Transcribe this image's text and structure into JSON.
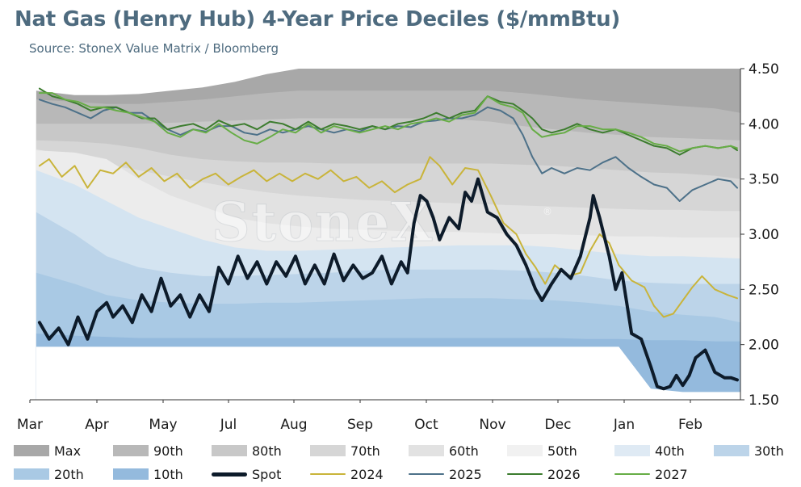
{
  "title": "Nat Gas (Henry Hub) 4-Year Price Deciles ($/mmBtu)",
  "subtitle": "Source: StoneX Value Matrix / Bloomberg",
  "watermark": "StoneX",
  "watermark_mark": "®",
  "chart_data": {
    "type": "area",
    "ylim": [
      1.5,
      4.5
    ],
    "yticks": [
      "4.50",
      "4.00",
      "3.50",
      "3.00",
      "2.50",
      "2.00",
      "1.50"
    ],
    "ytick_values": [
      4.5,
      4.0,
      3.5,
      3.0,
      2.5,
      2.0,
      1.5
    ],
    "x_label": "",
    "x_months": [
      "Mar",
      "Apr",
      "May",
      "Jul",
      "Aug",
      "Sep",
      "Oct",
      "Nov",
      "Dec",
      "Jan",
      "Feb"
    ],
    "x_month_pos": [
      0.0,
      1.0,
      2.0,
      3.0,
      4.0,
      5.0,
      6.0,
      7.0,
      8.0,
      9.0,
      10.0
    ],
    "x_range": [
      -0.2,
      10.9
    ],
    "deciles": {
      "x": [
        -0.1,
        0.5,
        1.0,
        1.5,
        2.0,
        2.5,
        3.0,
        3.5,
        4.0,
        4.5,
        5.0,
        5.5,
        6.0,
        6.5,
        7.0,
        7.5,
        8.0,
        8.5,
        9.0,
        9.5,
        10.0,
        10.5,
        10.9
      ],
      "bands": [
        {
          "name": "Max",
          "color": "#a8a8a8",
          "values": [
            4.3,
            4.26,
            4.26,
            4.27,
            4.3,
            4.33,
            4.38,
            4.45,
            4.5,
            4.5,
            4.5,
            4.5,
            4.5,
            4.5,
            4.5,
            4.5,
            4.5,
            4.5,
            4.5,
            4.5,
            4.5,
            4.5,
            4.5
          ]
        },
        {
          "name": "90th",
          "color": "#b8b8b8",
          "values": [
            4.22,
            4.2,
            4.18,
            4.18,
            4.2,
            4.22,
            4.25,
            4.28,
            4.3,
            4.3,
            4.3,
            4.3,
            4.3,
            4.3,
            4.3,
            4.28,
            4.25,
            4.22,
            4.2,
            4.18,
            4.16,
            4.14,
            4.1
          ]
        },
        {
          "name": "80th",
          "color": "#c8c8c8",
          "values": [
            4.0,
            4.0,
            4.0,
            4.0,
            4.01,
            4.02,
            4.03,
            4.04,
            4.05,
            4.05,
            4.05,
            4.05,
            4.05,
            4.04,
            4.02,
            3.98,
            3.95,
            3.92,
            3.9,
            3.88,
            3.87,
            3.86,
            3.85
          ]
        },
        {
          "name": "70th",
          "color": "#d6d6d6",
          "values": [
            3.85,
            3.84,
            3.82,
            3.78,
            3.72,
            3.68,
            3.66,
            3.65,
            3.65,
            3.64,
            3.64,
            3.64,
            3.64,
            3.64,
            3.64,
            3.63,
            3.62,
            3.6,
            3.58,
            3.56,
            3.55,
            3.53,
            3.5
          ]
        },
        {
          "name": "60th",
          "color": "#e2e2e2",
          "values": [
            3.77,
            3.7,
            3.63,
            3.58,
            3.52,
            3.47,
            3.42,
            3.38,
            3.35,
            3.33,
            3.31,
            3.3,
            3.29,
            3.28,
            3.27,
            3.26,
            3.25,
            3.24,
            3.23,
            3.22,
            3.22,
            3.21,
            3.21
          ]
        },
        {
          "name": "50th",
          "color": "#ececec",
          "values": [
            3.76,
            3.74,
            3.68,
            3.5,
            3.35,
            3.25,
            3.15,
            3.1,
            3.07,
            3.05,
            3.04,
            3.03,
            3.02,
            3.02,
            3.01,
            3.0,
            3.0,
            2.99,
            2.98,
            2.98,
            2.97,
            2.97,
            2.97
          ]
        },
        {
          "name": "40th",
          "color": "#d4e4f1",
          "values": [
            3.58,
            3.45,
            3.3,
            3.15,
            3.05,
            2.95,
            2.88,
            2.85,
            2.85,
            2.86,
            2.87,
            2.88,
            2.89,
            2.9,
            2.9,
            2.9,
            2.88,
            2.85,
            2.82,
            2.8,
            2.8,
            2.79,
            2.78
          ]
        },
        {
          "name": "30th",
          "color": "#bcd4e9",
          "values": [
            3.2,
            3.0,
            2.8,
            2.7,
            2.65,
            2.62,
            2.62,
            2.63,
            2.64,
            2.65,
            2.67,
            2.68,
            2.68,
            2.68,
            2.68,
            2.67,
            2.65,
            2.62,
            2.58,
            2.56,
            2.55,
            2.55,
            2.55
          ]
        },
        {
          "name": "20th",
          "color": "#a9c9e4",
          "values": [
            2.65,
            2.55,
            2.45,
            2.4,
            2.38,
            2.37,
            2.37,
            2.38,
            2.38,
            2.39,
            2.4,
            2.41,
            2.42,
            2.42,
            2.42,
            2.41,
            2.4,
            2.38,
            2.35,
            2.3,
            2.27,
            2.25,
            2.2
          ]
        },
        {
          "name": "10th",
          "color": "#94badd",
          "values": [
            2.1,
            2.08,
            2.07,
            2.06,
            2.06,
            2.06,
            2.06,
            2.06,
            2.06,
            2.06,
            2.06,
            2.06,
            2.06,
            2.06,
            2.06,
            2.06,
            2.06,
            2.05,
            2.05,
            2.04,
            2.04,
            2.03,
            2.03
          ]
        },
        {
          "name": "Min",
          "color": "#ffffff",
          "values": [
            1.98,
            1.98,
            1.98,
            1.98,
            1.98,
            1.98,
            1.98,
            1.98,
            1.98,
            1.98,
            1.98,
            1.98,
            1.98,
            1.98,
            1.98,
            1.98,
            1.98,
            1.98,
            1.98,
            1.6,
            1.57,
            1.57,
            1.57
          ]
        }
      ]
    },
    "series": [
      {
        "name": "Spot",
        "color": "#0d1b2a",
        "width": 4,
        "x": [
          -0.05,
          0.1,
          0.25,
          0.4,
          0.55,
          0.7,
          0.85,
          1.0,
          1.1,
          1.25,
          1.4,
          1.55,
          1.7,
          1.85,
          2.0,
          2.15,
          2.3,
          2.45,
          2.6,
          2.75,
          2.9,
          3.05,
          3.2,
          3.35,
          3.5,
          3.65,
          3.8,
          3.95,
          4.1,
          4.25,
          4.4,
          4.55,
          4.7,
          4.85,
          5.0,
          5.15,
          5.3,
          5.45,
          5.6,
          5.7,
          5.8,
          5.9,
          6.0,
          6.1,
          6.2,
          6.35,
          6.5,
          6.6,
          6.7,
          6.8,
          6.95,
          7.1,
          7.25,
          7.4,
          7.55,
          7.7,
          7.8,
          7.95,
          8.1,
          8.25,
          8.4,
          8.55,
          8.6,
          8.7,
          8.85,
          8.95,
          9.05,
          9.2,
          9.35,
          9.5,
          9.6,
          9.7,
          9.8,
          9.9,
          10.0,
          10.1,
          10.2,
          10.35,
          10.5,
          10.65,
          10.75,
          10.85
        ],
        "values": [
          2.2,
          2.05,
          2.15,
          2.0,
          2.25,
          2.05,
          2.3,
          2.38,
          2.25,
          2.35,
          2.2,
          2.45,
          2.3,
          2.6,
          2.35,
          2.45,
          2.25,
          2.45,
          2.3,
          2.7,
          2.55,
          2.8,
          2.6,
          2.75,
          2.55,
          2.75,
          2.62,
          2.8,
          2.55,
          2.72,
          2.55,
          2.82,
          2.58,
          2.72,
          2.6,
          2.65,
          2.8,
          2.55,
          2.75,
          2.65,
          3.1,
          3.35,
          3.3,
          3.15,
          2.95,
          3.15,
          3.05,
          3.38,
          3.3,
          3.5,
          3.2,
          3.15,
          3.0,
          2.9,
          2.72,
          2.5,
          2.4,
          2.55,
          2.68,
          2.6,
          2.8,
          3.15,
          3.35,
          3.15,
          2.8,
          2.5,
          2.65,
          2.1,
          2.05,
          1.8,
          1.62,
          1.6,
          1.62,
          1.72,
          1.63,
          1.72,
          1.88,
          1.95,
          1.75,
          1.7,
          1.7,
          1.68
        ]
      },
      {
        "name": "2024",
        "color": "#c9b43a",
        "width": 2,
        "x": [
          -0.05,
          0.1,
          0.3,
          0.5,
          0.7,
          0.9,
          1.1,
          1.3,
          1.5,
          1.7,
          1.9,
          2.1,
          2.3,
          2.5,
          2.7,
          2.9,
          3.1,
          3.3,
          3.5,
          3.7,
          3.9,
          4.1,
          4.3,
          4.5,
          4.7,
          4.9,
          5.1,
          5.3,
          5.5,
          5.7,
          5.9,
          6.05,
          6.2,
          6.4,
          6.6,
          6.8,
          7.0,
          7.2,
          7.4,
          7.55,
          7.7,
          7.85,
          8.0,
          8.2,
          8.4,
          8.55,
          8.7,
          8.85,
          9.0,
          9.2,
          9.4,
          9.55,
          9.7,
          9.85,
          10.0,
          10.15,
          10.3,
          10.5,
          10.7,
          10.85
        ],
        "values": [
          3.62,
          3.68,
          3.52,
          3.62,
          3.42,
          3.58,
          3.55,
          3.65,
          3.52,
          3.6,
          3.48,
          3.55,
          3.42,
          3.5,
          3.55,
          3.45,
          3.52,
          3.58,
          3.48,
          3.55,
          3.48,
          3.55,
          3.5,
          3.58,
          3.48,
          3.52,
          3.42,
          3.48,
          3.38,
          3.45,
          3.5,
          3.7,
          3.62,
          3.45,
          3.6,
          3.58,
          3.35,
          3.1,
          3.0,
          2.82,
          2.7,
          2.55,
          2.72,
          2.62,
          2.65,
          2.85,
          3.0,
          2.92,
          2.72,
          2.58,
          2.52,
          2.35,
          2.25,
          2.28,
          2.4,
          2.52,
          2.62,
          2.5,
          2.45,
          2.42
        ]
      },
      {
        "name": "2025",
        "color": "#4d7189",
        "width": 2,
        "x": [
          -0.05,
          0.15,
          0.35,
          0.55,
          0.75,
          0.95,
          1.15,
          1.35,
          1.55,
          1.75,
          1.95,
          2.15,
          2.35,
          2.55,
          2.75,
          2.95,
          3.15,
          3.35,
          3.55,
          3.75,
          3.95,
          4.15,
          4.35,
          4.55,
          4.75,
          4.95,
          5.15,
          5.35,
          5.55,
          5.75,
          5.95,
          6.15,
          6.35,
          6.55,
          6.75,
          6.95,
          7.15,
          7.35,
          7.5,
          7.65,
          7.8,
          7.95,
          8.15,
          8.35,
          8.55,
          8.75,
          8.95,
          9.15,
          9.35,
          9.55,
          9.75,
          9.95,
          10.15,
          10.35,
          10.55,
          10.75,
          10.85
        ],
        "values": [
          4.22,
          4.18,
          4.15,
          4.1,
          4.05,
          4.12,
          4.15,
          4.1,
          4.1,
          4.02,
          3.95,
          3.9,
          3.95,
          3.93,
          3.98,
          3.98,
          3.92,
          3.9,
          3.95,
          3.92,
          3.95,
          3.98,
          3.95,
          3.92,
          3.95,
          3.93,
          3.98,
          3.95,
          3.98,
          3.97,
          4.02,
          4.03,
          4.05,
          4.05,
          4.08,
          4.15,
          4.12,
          4.05,
          3.9,
          3.7,
          3.55,
          3.6,
          3.55,
          3.6,
          3.58,
          3.65,
          3.7,
          3.6,
          3.52,
          3.45,
          3.42,
          3.3,
          3.4,
          3.45,
          3.5,
          3.48,
          3.42
        ]
      },
      {
        "name": "2026",
        "color": "#3c7c2e",
        "width": 2,
        "x": [
          -0.05,
          0.15,
          0.35,
          0.55,
          0.75,
          0.95,
          1.15,
          1.35,
          1.55,
          1.75,
          1.95,
          2.15,
          2.35,
          2.55,
          2.75,
          2.95,
          3.15,
          3.35,
          3.55,
          3.75,
          3.95,
          4.15,
          4.35,
          4.55,
          4.75,
          4.95,
          5.15,
          5.35,
          5.55,
          5.75,
          5.95,
          6.15,
          6.35,
          6.55,
          6.75,
          6.95,
          7.15,
          7.35,
          7.5,
          7.65,
          7.8,
          7.95,
          8.15,
          8.35,
          8.55,
          8.75,
          8.95,
          9.15,
          9.35,
          9.55,
          9.75,
          9.95,
          10.15,
          10.35,
          10.55,
          10.75,
          10.85
        ],
        "values": [
          4.32,
          4.25,
          4.22,
          4.18,
          4.12,
          4.15,
          4.15,
          4.1,
          4.05,
          4.05,
          3.95,
          3.98,
          4.0,
          3.95,
          4.03,
          3.98,
          4.0,
          3.95,
          4.02,
          4.0,
          3.95,
          4.02,
          3.95,
          4.0,
          3.98,
          3.95,
          3.98,
          3.95,
          4.0,
          4.02,
          4.05,
          4.1,
          4.05,
          4.1,
          4.12,
          4.25,
          4.2,
          4.18,
          4.12,
          4.05,
          3.95,
          3.92,
          3.95,
          4.0,
          3.95,
          3.92,
          3.95,
          3.9,
          3.85,
          3.8,
          3.78,
          3.72,
          3.78,
          3.8,
          3.78,
          3.8,
          3.76
        ]
      },
      {
        "name": "2027",
        "color": "#67ad46",
        "width": 2,
        "x": [
          -0.05,
          0.15,
          0.35,
          0.55,
          0.75,
          0.95,
          1.15,
          1.35,
          1.55,
          1.75,
          1.95,
          2.15,
          2.35,
          2.55,
          2.75,
          2.95,
          3.15,
          3.35,
          3.55,
          3.75,
          3.95,
          4.15,
          4.35,
          4.55,
          4.75,
          4.95,
          5.15,
          5.35,
          5.55,
          5.75,
          5.95,
          6.15,
          6.35,
          6.55,
          6.75,
          6.95,
          7.15,
          7.35,
          7.5,
          7.65,
          7.8,
          7.95,
          8.15,
          8.35,
          8.55,
          8.75,
          8.95,
          9.15,
          9.35,
          9.55,
          9.75,
          9.95,
          10.15,
          10.35,
          10.55,
          10.75,
          10.85
        ],
        "values": [
          4.28,
          4.28,
          4.22,
          4.2,
          4.15,
          4.15,
          4.12,
          4.1,
          4.06,
          4.02,
          3.92,
          3.88,
          3.95,
          3.92,
          4.0,
          3.92,
          3.85,
          3.82,
          3.88,
          3.95,
          3.92,
          4.0,
          3.92,
          3.98,
          3.95,
          3.92,
          3.95,
          3.98,
          3.95,
          4.0,
          4.02,
          4.05,
          4.02,
          4.08,
          4.1,
          4.25,
          4.18,
          4.15,
          4.1,
          3.95,
          3.88,
          3.9,
          3.92,
          3.98,
          3.98,
          3.95,
          3.95,
          3.92,
          3.88,
          3.82,
          3.8,
          3.75,
          3.78,
          3.8,
          3.78,
          3.8,
          3.78
        ]
      }
    ]
  },
  "legend": [
    {
      "label": "Max",
      "kind": "swatch",
      "color": "#a8a8a8"
    },
    {
      "label": "90th",
      "kind": "swatch",
      "color": "#b8b8b8"
    },
    {
      "label": "80th",
      "kind": "swatch",
      "color": "#c8c8c8"
    },
    {
      "label": "70th",
      "kind": "swatch",
      "color": "#d6d6d6"
    },
    {
      "label": "60th",
      "kind": "swatch",
      "color": "#e2e2e2"
    },
    {
      "label": "50th",
      "kind": "swatch",
      "color": "#f1f1f1"
    },
    {
      "label": "40th",
      "kind": "swatch",
      "color": "#dfeaf4"
    },
    {
      "label": "30th",
      "kind": "swatch",
      "color": "#bcd4e9"
    },
    {
      "label": "20th",
      "kind": "swatch",
      "color": "#a9c9e4"
    },
    {
      "label": "10th",
      "kind": "swatch",
      "color": "#94badd"
    },
    {
      "label": "Spot",
      "kind": "line",
      "color": "#0d1b2a",
      "width": 5
    },
    {
      "label": "2024",
      "kind": "line",
      "color": "#c9b43a",
      "width": 2
    },
    {
      "label": "2025",
      "kind": "line",
      "color": "#4d7189",
      "width": 2
    },
    {
      "label": "2026",
      "kind": "line",
      "color": "#3c7c2e",
      "width": 2
    },
    {
      "label": "2027",
      "kind": "line",
      "color": "#67ad46",
      "width": 2
    }
  ]
}
